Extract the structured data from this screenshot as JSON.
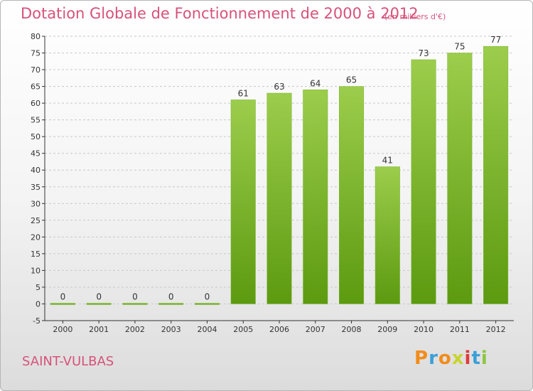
{
  "header": {
    "title": "Dotation Globale de Fonctionnement de 2000 à 2012",
    "unit": "(en milliers d'€)"
  },
  "footer": {
    "commune": "SAINT-VULBAS",
    "logo_text": "Proxiti",
    "logo_colors": [
      "#f28c1a",
      "#3aa0d8",
      "#f28c1a",
      "#c8d42e",
      "#e03b3b",
      "#3aa0d8",
      "#8cc63f"
    ]
  },
  "chart_data": {
    "type": "bar",
    "title": "Dotation Globale de Fonctionnement de 2000 à 2012",
    "xlabel": "",
    "ylabel": "",
    "categories": [
      "2000",
      "2001",
      "2002",
      "2003",
      "2004",
      "2005",
      "2006",
      "2007",
      "2008",
      "2009",
      "2010",
      "2011",
      "2012"
    ],
    "values": [
      0,
      0,
      0,
      0,
      0,
      61,
      63,
      64,
      65,
      41,
      73,
      75,
      77
    ],
    "ylim": [
      -5,
      80
    ],
    "yticks": [
      -5,
      0,
      5,
      10,
      15,
      20,
      25,
      30,
      35,
      40,
      45,
      50,
      55,
      60,
      65,
      70,
      75,
      80
    ],
    "grid": true,
    "bar_color_top": "#9ccd4c",
    "bar_color_bottom": "#5c9a10",
    "axis_color": "#333333",
    "grid_color": "#c8c8c8"
  }
}
